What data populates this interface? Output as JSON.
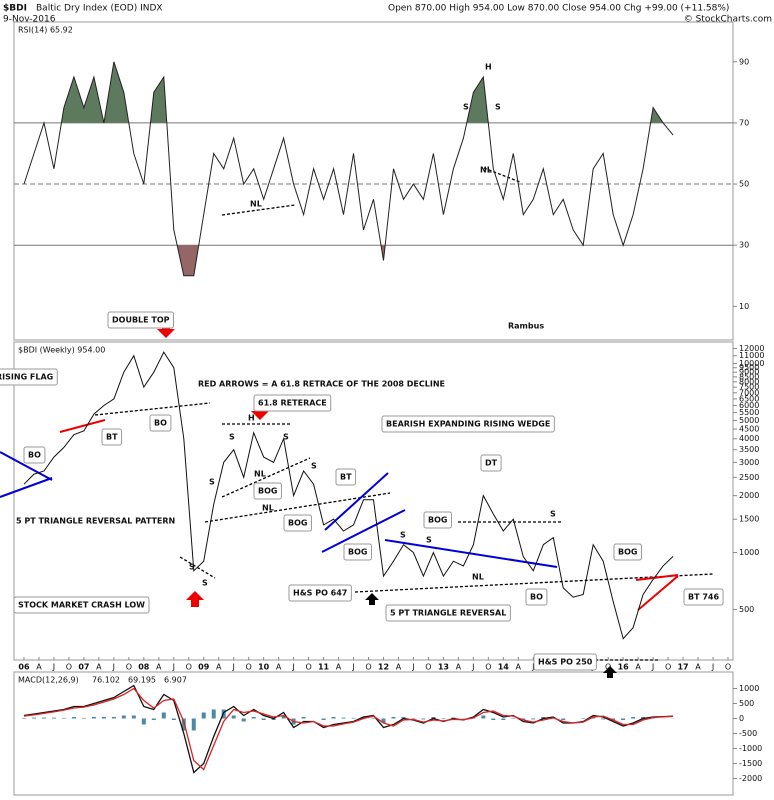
{
  "header": {
    "symbol": "$BDI",
    "name": "Baltic Dry Index (EOD) INDX",
    "date": "9-Nov-2016",
    "quote": "Open 870.00 High 954.00 Low 870.00 Close 954.00 Chg +99.00 (+11.58%)",
    "source": "© StockCharts.com"
  },
  "chart_data": [
    {
      "type": "line",
      "title": "RSI(14) 65.92",
      "overbought": 70,
      "midline": 50,
      "oversold": 30,
      "overbought_color": "#5e7a5e",
      "oversold_color": "#946666",
      "color": "#222222",
      "x": [
        "2006-01",
        "2006-03",
        "2006-05",
        "2006-07",
        "2006-09",
        "2006-11",
        "2007-01",
        "2007-03",
        "2007-05",
        "2007-07",
        "2007-09",
        "2007-11",
        "2008-01",
        "2008-03",
        "2008-05",
        "2008-07",
        "2008-09",
        "2008-11",
        "2009-01",
        "2009-03",
        "2009-05",
        "2009-07",
        "2009-09",
        "2009-11",
        "2010-01",
        "2010-03",
        "2010-05",
        "2010-07",
        "2010-09",
        "2010-11",
        "2011-01",
        "2011-03",
        "2011-05",
        "2011-07",
        "2011-09",
        "2011-11",
        "2012-01",
        "2012-03",
        "2012-05",
        "2012-07",
        "2012-09",
        "2012-11",
        "2013-01",
        "2013-03",
        "2013-05",
        "2013-07",
        "2013-09",
        "2013-11",
        "2014-01",
        "2014-03",
        "2014-05",
        "2014-07",
        "2014-09",
        "2014-11",
        "2015-01",
        "2015-03",
        "2015-05",
        "2015-07",
        "2015-09",
        "2015-11",
        "2016-01",
        "2016-03",
        "2016-05",
        "2016-07",
        "2016-09",
        "2016-11"
      ],
      "values": [
        50,
        60,
        70,
        55,
        75,
        85,
        75,
        85,
        70,
        90,
        80,
        60,
        50,
        80,
        85,
        35,
        20,
        20,
        40,
        60,
        55,
        65,
        50,
        55,
        45,
        55,
        65,
        50,
        40,
        55,
        45,
        55,
        40,
        60,
        35,
        45,
        25,
        55,
        45,
        50,
        45,
        60,
        40,
        55,
        65,
        80,
        85,
        55,
        45,
        60,
        40,
        45,
        55,
        40,
        45,
        35,
        30,
        55,
        60,
        40,
        30,
        40,
        55,
        75,
        70,
        66
      ],
      "xlim": [
        "2005-11",
        "2017-11"
      ],
      "ylim": [
        -1,
        103
      ],
      "yticks": [
        10,
        30,
        50,
        70,
        90
      ],
      "annotations": [
        "H",
        "S",
        "S",
        "NL",
        "NL",
        "Rambus"
      ]
    },
    {
      "type": "line",
      "title": "$BDI (Weekly) 954.00",
      "y_scale": "log",
      "color": "#111111",
      "x": [
        "2006-01",
        "2006-03",
        "2006-05",
        "2006-07",
        "2006-09",
        "2006-11",
        "2007-01",
        "2007-03",
        "2007-05",
        "2007-07",
        "2007-09",
        "2007-11",
        "2008-01",
        "2008-03",
        "2008-05",
        "2008-07",
        "2008-09",
        "2008-11",
        "2009-01",
        "2009-03",
        "2009-05",
        "2009-07",
        "2009-09",
        "2009-11",
        "2010-01",
        "2010-03",
        "2010-05",
        "2010-07",
        "2010-09",
        "2010-11",
        "2011-01",
        "2011-03",
        "2011-05",
        "2011-07",
        "2011-09",
        "2011-11",
        "2012-01",
        "2012-03",
        "2012-05",
        "2012-07",
        "2012-09",
        "2012-11",
        "2013-01",
        "2013-03",
        "2013-05",
        "2013-07",
        "2013-09",
        "2013-11",
        "2014-01",
        "2014-03",
        "2014-05",
        "2014-07",
        "2014-09",
        "2014-11",
        "2015-01",
        "2015-03",
        "2015-05",
        "2015-07",
        "2015-09",
        "2015-11",
        "2016-01",
        "2016-03",
        "2016-05",
        "2016-07",
        "2016-09",
        "2016-11"
      ],
      "values": [
        2300,
        2600,
        2700,
        3200,
        3600,
        4200,
        4400,
        5400,
        6000,
        6500,
        9000,
        11000,
        7500,
        9000,
        11500,
        9500,
        4000,
        800,
        900,
        1800,
        3000,
        3500,
        2500,
        4300,
        3200,
        3000,
        4000,
        2000,
        2700,
        2300,
        1400,
        1500,
        1300,
        1400,
        1900,
        1900,
        750,
        900,
        1100,
        1000,
        750,
        1000,
        750,
        900,
        850,
        1100,
        2000,
        1600,
        1300,
        1500,
        950,
        800,
        1100,
        1200,
        650,
        580,
        600,
        1100,
        900,
        550,
        350,
        400,
        600,
        720,
        850,
        954
      ],
      "xlim": [
        "2005-11",
        "2017-11"
      ],
      "ylim": [
        270,
        13000
      ],
      "yticks": [
        500,
        1000,
        1500,
        2000,
        2500,
        3000,
        3500,
        4000,
        4500,
        5000,
        5500,
        6000,
        6500,
        7000,
        7500,
        8000,
        8500,
        9000,
        9500,
        10000,
        11000,
        12000
      ],
      "xticks": [
        {
          "value": "2006-01",
          "label": "06"
        },
        {
          "value": "2006-04",
          "label": "A"
        },
        {
          "value": "2006-07",
          "label": "J"
        },
        {
          "value": "2006-10",
          "label": "O"
        },
        {
          "value": "2007-01",
          "label": "07"
        },
        {
          "value": "2007-04",
          "label": "A"
        },
        {
          "value": "2007-07",
          "label": "J"
        },
        {
          "value": "2007-10",
          "label": "O"
        },
        {
          "value": "2008-01",
          "label": "08"
        },
        {
          "value": "2008-04",
          "label": "A"
        },
        {
          "value": "2008-07",
          "label": "J"
        },
        {
          "value": "2008-10",
          "label": "O"
        },
        {
          "value": "2009-01",
          "label": "09"
        },
        {
          "value": "2009-04",
          "label": "A"
        },
        {
          "value": "2009-07",
          "label": "J"
        },
        {
          "value": "2009-10",
          "label": "O"
        },
        {
          "value": "2010-01",
          "label": "10"
        },
        {
          "value": "2010-04",
          "label": "A"
        },
        {
          "value": "2010-07",
          "label": "J"
        },
        {
          "value": "2010-10",
          "label": "O"
        },
        {
          "value": "2011-01",
          "label": "11"
        },
        {
          "value": "2011-04",
          "label": "A"
        },
        {
          "value": "2011-07",
          "label": "J"
        },
        {
          "value": "2011-10",
          "label": "O"
        },
        {
          "value": "2012-01",
          "label": "12"
        },
        {
          "value": "2012-04",
          "label": "A"
        },
        {
          "value": "2012-07",
          "label": "J"
        },
        {
          "value": "2012-10",
          "label": "O"
        },
        {
          "value": "2013-01",
          "label": "13"
        },
        {
          "value": "2013-04",
          "label": "A"
        },
        {
          "value": "2013-07",
          "label": "J"
        },
        {
          "value": "2013-10",
          "label": "O"
        },
        {
          "value": "2014-01",
          "label": "14"
        },
        {
          "value": "2014-04",
          "label": "A"
        },
        {
          "value": "2014-07",
          "label": "J"
        },
        {
          "value": "2014-10",
          "label": "O"
        },
        {
          "value": "2015-01",
          "label": "15"
        },
        {
          "value": "2015-04",
          "label": "A"
        },
        {
          "value": "2015-07",
          "label": "J"
        },
        {
          "value": "2015-10",
          "label": "O"
        },
        {
          "value": "2016-01",
          "label": "16"
        },
        {
          "value": "2016-04",
          "label": "A"
        },
        {
          "value": "2016-07",
          "label": "J"
        },
        {
          "value": "2016-10",
          "label": "O"
        },
        {
          "value": "2017-01",
          "label": "17"
        },
        {
          "value": "2017-04",
          "label": "A"
        },
        {
          "value": "2017-07",
          "label": "J"
        },
        {
          "value": "2017-10",
          "label": "O"
        }
      ],
      "annotations": [
        "DOUBLE TOP",
        "RISING FLAG",
        "RED ARROWS = A 61.8 RETRACE OF THE 2008 DECLINE",
        "61.8 RETERACE",
        "BEARISH EXPANDING RISING WEDGE",
        "BO",
        "BT",
        "BO",
        "H",
        "S",
        "S",
        "NL",
        "BOG",
        "S",
        "S",
        "NL",
        "BT",
        "BOG",
        "BOG",
        "5 PT TRIANGLE REVERSAL PATTERN",
        "STOCK MARKET CRASH LOW",
        "S",
        "S",
        "DT",
        "BOG",
        "S",
        "S",
        "S",
        "NL",
        "H&S PO 647",
        "BO",
        "5 PT TRIANGLE REVERSAL",
        "BOG",
        "BT 746",
        "H&S PO 250"
      ]
    },
    {
      "type": "line",
      "title": "MACD(12,26,9)",
      "title_values": [
        "76.102",
        "69.195",
        "6.907"
      ],
      "x": [
        "2006-01",
        "2006-03",
        "2006-05",
        "2006-07",
        "2006-09",
        "2006-11",
        "2007-01",
        "2007-03",
        "2007-05",
        "2007-07",
        "2007-09",
        "2007-11",
        "2008-01",
        "2008-03",
        "2008-05",
        "2008-07",
        "2008-09",
        "2008-11",
        "2009-01",
        "2009-03",
        "2009-05",
        "2009-07",
        "2009-09",
        "2009-11",
        "2010-01",
        "2010-03",
        "2010-05",
        "2010-07",
        "2010-09",
        "2010-11",
        "2011-01",
        "2011-03",
        "2011-05",
        "2011-07",
        "2011-09",
        "2011-11",
        "2012-01",
        "2012-03",
        "2012-05",
        "2012-07",
        "2012-09",
        "2012-11",
        "2013-01",
        "2013-03",
        "2013-05",
        "2013-07",
        "2013-09",
        "2013-11",
        "2014-01",
        "2014-03",
        "2014-05",
        "2014-07",
        "2014-09",
        "2014-11",
        "2015-01",
        "2015-03",
        "2015-05",
        "2015-07",
        "2015-09",
        "2015-11",
        "2016-01",
        "2016-03",
        "2016-05",
        "2016-07",
        "2016-09",
        "2016-11"
      ],
      "series": [
        {
          "color": "#4a89a8",
          "type": "bar",
          "values": [
            20,
            30,
            30,
            30,
            20,
            50,
            20,
            50,
            50,
            50,
            100,
            100,
            -200,
            -50,
            200,
            -50,
            -400,
            -400,
            200,
            300,
            300,
            100,
            -100,
            50,
            -50,
            -50,
            100,
            -200,
            50,
            0,
            -50,
            50,
            30,
            20,
            50,
            20,
            -150,
            50,
            50,
            -20,
            -30,
            50,
            -20,
            30,
            -10,
            30,
            100,
            -50,
            -50,
            20,
            -50,
            -30,
            50,
            30,
            -50,
            0,
            20,
            50,
            -30,
            -50,
            -50,
            50,
            50,
            20,
            5,
            7
          ]
        },
        {
          "color": "#111111",
          "type": "line",
          "values": [
            100,
            150,
            200,
            250,
            300,
            400,
            400,
            500,
            600,
            700,
            900,
            1100,
            400,
            300,
            800,
            600,
            -500,
            -1800,
            -1500,
            -600,
            200,
            400,
            100,
            300,
            100,
            0,
            200,
            -300,
            -100,
            -100,
            -300,
            -200,
            -150,
            -100,
            50,
            100,
            -300,
            -200,
            0,
            -50,
            -150,
            0,
            -100,
            0,
            -50,
            50,
            300,
            200,
            50,
            100,
            -100,
            -150,
            0,
            50,
            -150,
            -150,
            -100,
            100,
            50,
            -100,
            -250,
            -150,
            0,
            50,
            60,
            76
          ]
        },
        {
          "color": "#dd2222",
          "type": "line",
          "values": [
            80,
            120,
            170,
            220,
            280,
            350,
            380,
            450,
            550,
            650,
            800,
            1000,
            600,
            350,
            600,
            650,
            -100,
            -1400,
            -1700,
            -900,
            -100,
            300,
            200,
            250,
            150,
            50,
            100,
            -100,
            -150,
            -100,
            -250,
            -250,
            -180,
            -120,
            0,
            80,
            -150,
            -250,
            -50,
            -30,
            -120,
            -50,
            -80,
            -30,
            -40,
            20,
            200,
            250,
            100,
            80,
            -50,
            -120,
            -50,
            20,
            -100,
            -150,
            -120,
            50,
            80,
            -50,
            -200,
            -200,
            -50,
            30,
            55,
            69
          ]
        }
      ],
      "xlim": [
        "2005-11",
        "2017-11"
      ],
      "ylim": [
        -2550,
        1550
      ],
      "yticks": [
        -2000,
        -1500,
        -1000,
        -500,
        0,
        500,
        1000
      ]
    }
  ]
}
